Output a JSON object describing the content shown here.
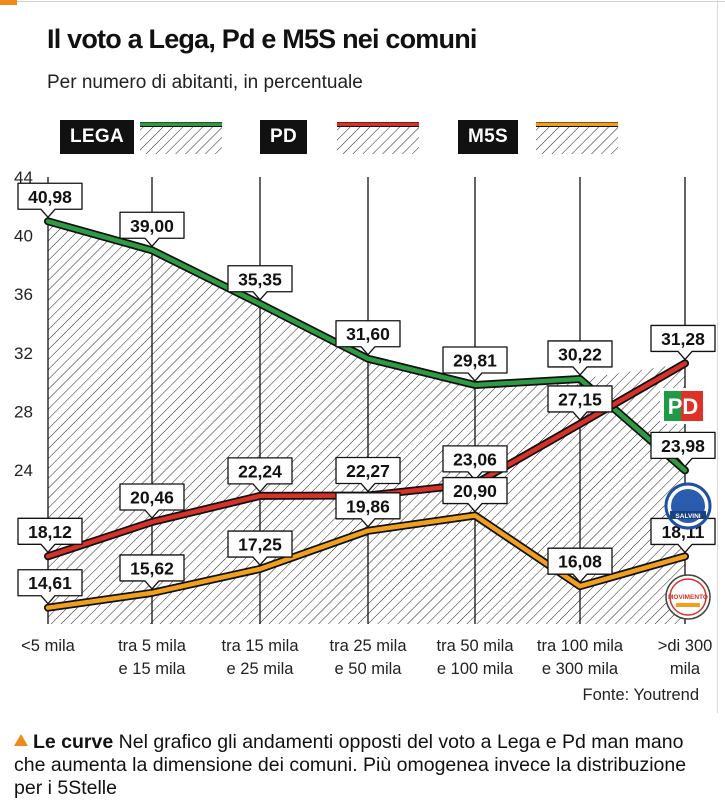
{
  "header": {
    "title": "Il voto a Lega, Pd e M5S nei comuni",
    "subtitle": "Per numero di abitanti, in percentuale"
  },
  "legend": [
    {
      "label": "LEGA",
      "color": "#2e9a43"
    },
    {
      "label": "PD",
      "color": "#d8312a"
    },
    {
      "label": "M5S",
      "color": "#f0a01c"
    }
  ],
  "chart_data": {
    "type": "area",
    "title": "Il voto a Lega, Pd e M5S nei comuni",
    "subtitle": "Per numero di abitanti, in percentuale",
    "categories": [
      [
        "<5 mila"
      ],
      [
        "tra 5 mila",
        "e 15 mila"
      ],
      [
        "tra 15 mila",
        "e 25 mila"
      ],
      [
        "tra 25 mila",
        "e 50 mila"
      ],
      [
        "tra 50 mila",
        "e 100 mila"
      ],
      [
        "tra 100 mila",
        "e 300 mila"
      ],
      [
        ">di 300",
        "mila"
      ]
    ],
    "series": [
      {
        "name": "LEGA",
        "color": "#2e9a43",
        "values": [
          40.98,
          39.0,
          35.35,
          31.6,
          29.81,
          30.22,
          23.98
        ],
        "labels": [
          "40,98",
          "39,00",
          "35,35",
          "31,60",
          "29,81",
          "30,22",
          "23,98"
        ]
      },
      {
        "name": "PD",
        "color": "#d8312a",
        "values": [
          18.12,
          20.46,
          22.24,
          22.27,
          23.06,
          27.15,
          31.28
        ],
        "labels": [
          "18,12",
          "20,46",
          "22,24",
          "22,27",
          "23,06",
          "27,15",
          "31,28"
        ]
      },
      {
        "name": "M5S",
        "color": "#f0a01c",
        "values": [
          14.61,
          15.62,
          17.25,
          19.86,
          20.9,
          16.08,
          18.11
        ],
        "labels": [
          "14,61",
          "15,62",
          "17,25",
          "19,86",
          "20,90",
          "16,08",
          "18,11"
        ]
      }
    ],
    "ylim": [
      13.5,
      44
    ],
    "yticks": [
      24,
      28,
      32,
      36,
      40,
      44
    ],
    "grid": "vertical",
    "legend_position": "top",
    "shading": "hatched area under the curves"
  },
  "source": "Fonte: Youtrend",
  "note": {
    "lead": "Le curve",
    "text": "Nel grafico gli andamenti opposti del voto a Lega e Pd man mano che aumenta la dimensione dei comuni. Più omogenea invece la distribuzione per i 5Stelle"
  },
  "logos": {
    "pd_text": "PD",
    "lega_text": "SALVINI",
    "m5s_text": "MOVIMENTO"
  }
}
